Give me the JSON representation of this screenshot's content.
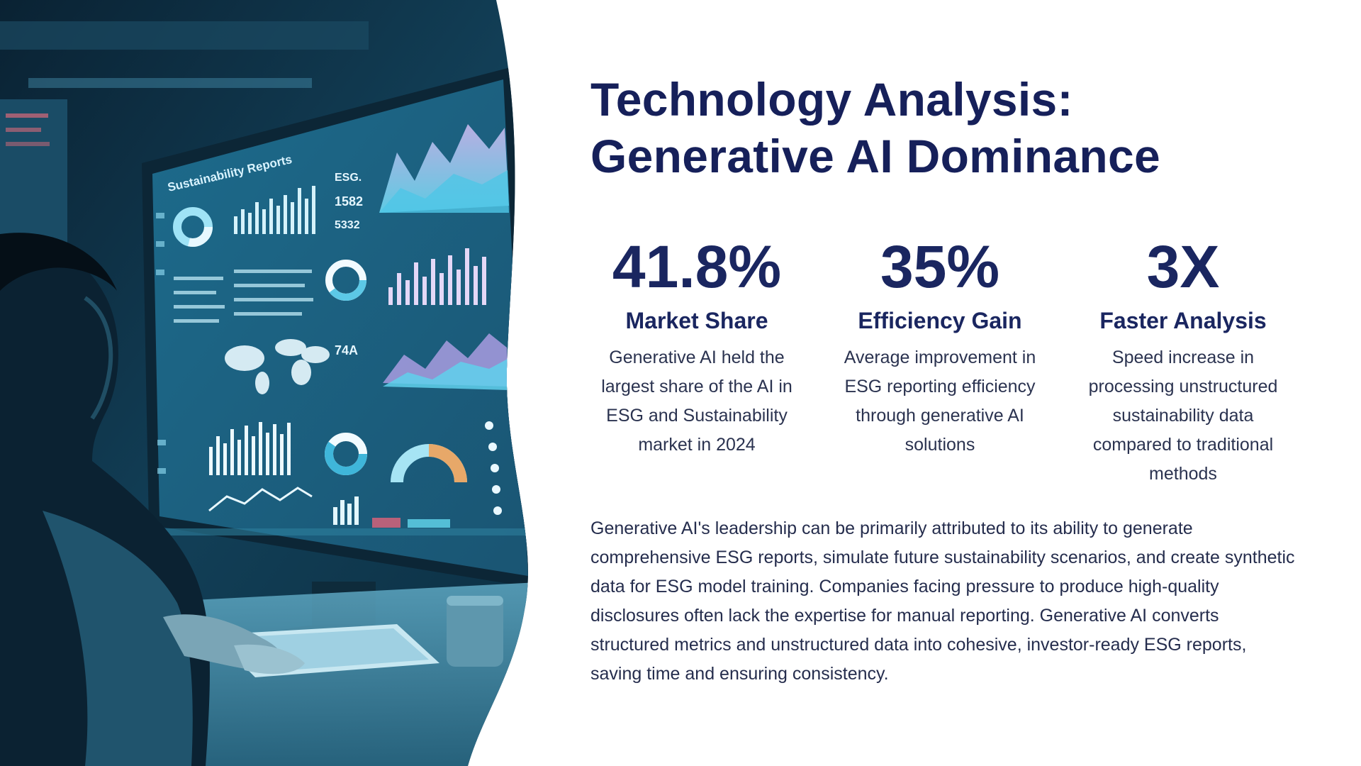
{
  "slide": {
    "title_line1": "Technology Analysis:",
    "title_line2": "Generative AI Dominance",
    "stats": [
      {
        "value": "41.8%",
        "label": "Market Share",
        "description": "Generative AI held the largest share of the AI in ESG and Sustainability market in 2024"
      },
      {
        "value": "35%",
        "label": "Efficiency Gain",
        "description": "Average improvement in ESG reporting efficiency through generative AI solutions"
      },
      {
        "value": "3X",
        "label": "Faster Analysis",
        "description": "Speed increase in processing unstructured sustainability data compared to traditional methods"
      }
    ],
    "summary": "Generative AI's leadership can be primarily attributed to its ability to generate comprehensive ESG reports, simulate future sustainability scenarios, and create synthetic data for ESG model training. Companies facing pressure to produce high-quality disclosures often lack the expertise for manual reporting. Generative AI converts structured metrics and unstructured data into cohesive, investor-ready ESG reports, saving time and ensuring consistency."
  },
  "photo": {
    "subject": "analyst-at-esg-dashboard-photo",
    "monitor_header_text": "Sustainability Reports",
    "palette": {
      "deep": "#0b2a3e",
      "mid": "#1f6c8c",
      "glow": "#6fd3f0",
      "accent": "#e7a869"
    }
  },
  "theme": {
    "title_color": "#16205a",
    "text_color": "#252d4d",
    "background": "#ffffff"
  }
}
